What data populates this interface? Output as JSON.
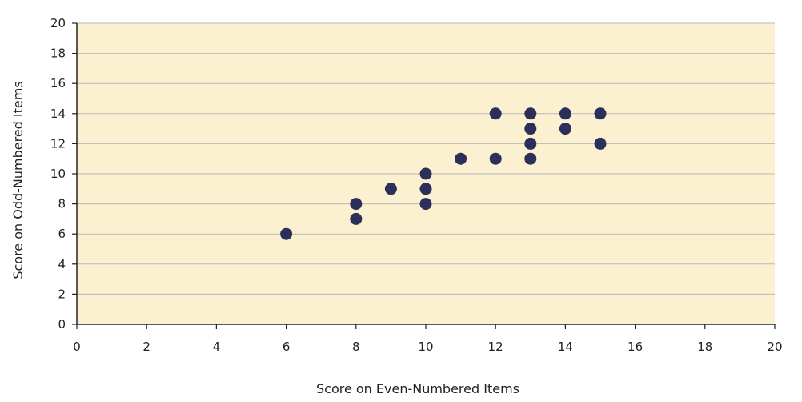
{
  "chart_data": {
    "type": "scatter",
    "title": "",
    "xlabel": "Score on Even-Numbered Items",
    "ylabel": "Score on Odd-Numbered Items",
    "xlim": [
      0,
      20
    ],
    "ylim": [
      0,
      20
    ],
    "xticks": [
      0,
      2,
      4,
      6,
      8,
      10,
      12,
      14,
      16,
      18,
      20
    ],
    "yticks": [
      0,
      2,
      4,
      6,
      8,
      10,
      12,
      14,
      16,
      18,
      20
    ],
    "grid": "horizontal",
    "series": [
      {
        "points": [
          {
            "x": 6,
            "y": 6
          },
          {
            "x": 8,
            "y": 7
          },
          {
            "x": 8,
            "y": 8
          },
          {
            "x": 9,
            "y": 9
          },
          {
            "x": 10,
            "y": 8
          },
          {
            "x": 10,
            "y": 9
          },
          {
            "x": 10,
            "y": 10
          },
          {
            "x": 11,
            "y": 11
          },
          {
            "x": 12,
            "y": 11
          },
          {
            "x": 12,
            "y": 14
          },
          {
            "x": 13,
            "y": 11
          },
          {
            "x": 13,
            "y": 12
          },
          {
            "x": 13,
            "y": 13
          },
          {
            "x": 13,
            "y": 14
          },
          {
            "x": 14,
            "y": 13
          },
          {
            "x": 14,
            "y": 14
          },
          {
            "x": 15,
            "y": 12
          },
          {
            "x": 15,
            "y": 14
          }
        ]
      }
    ],
    "colors": {
      "plot_background": "#fbf0cf",
      "grid": "#b9b9b9",
      "marker": "#2b2f5a",
      "axis": "#222222"
    }
  }
}
